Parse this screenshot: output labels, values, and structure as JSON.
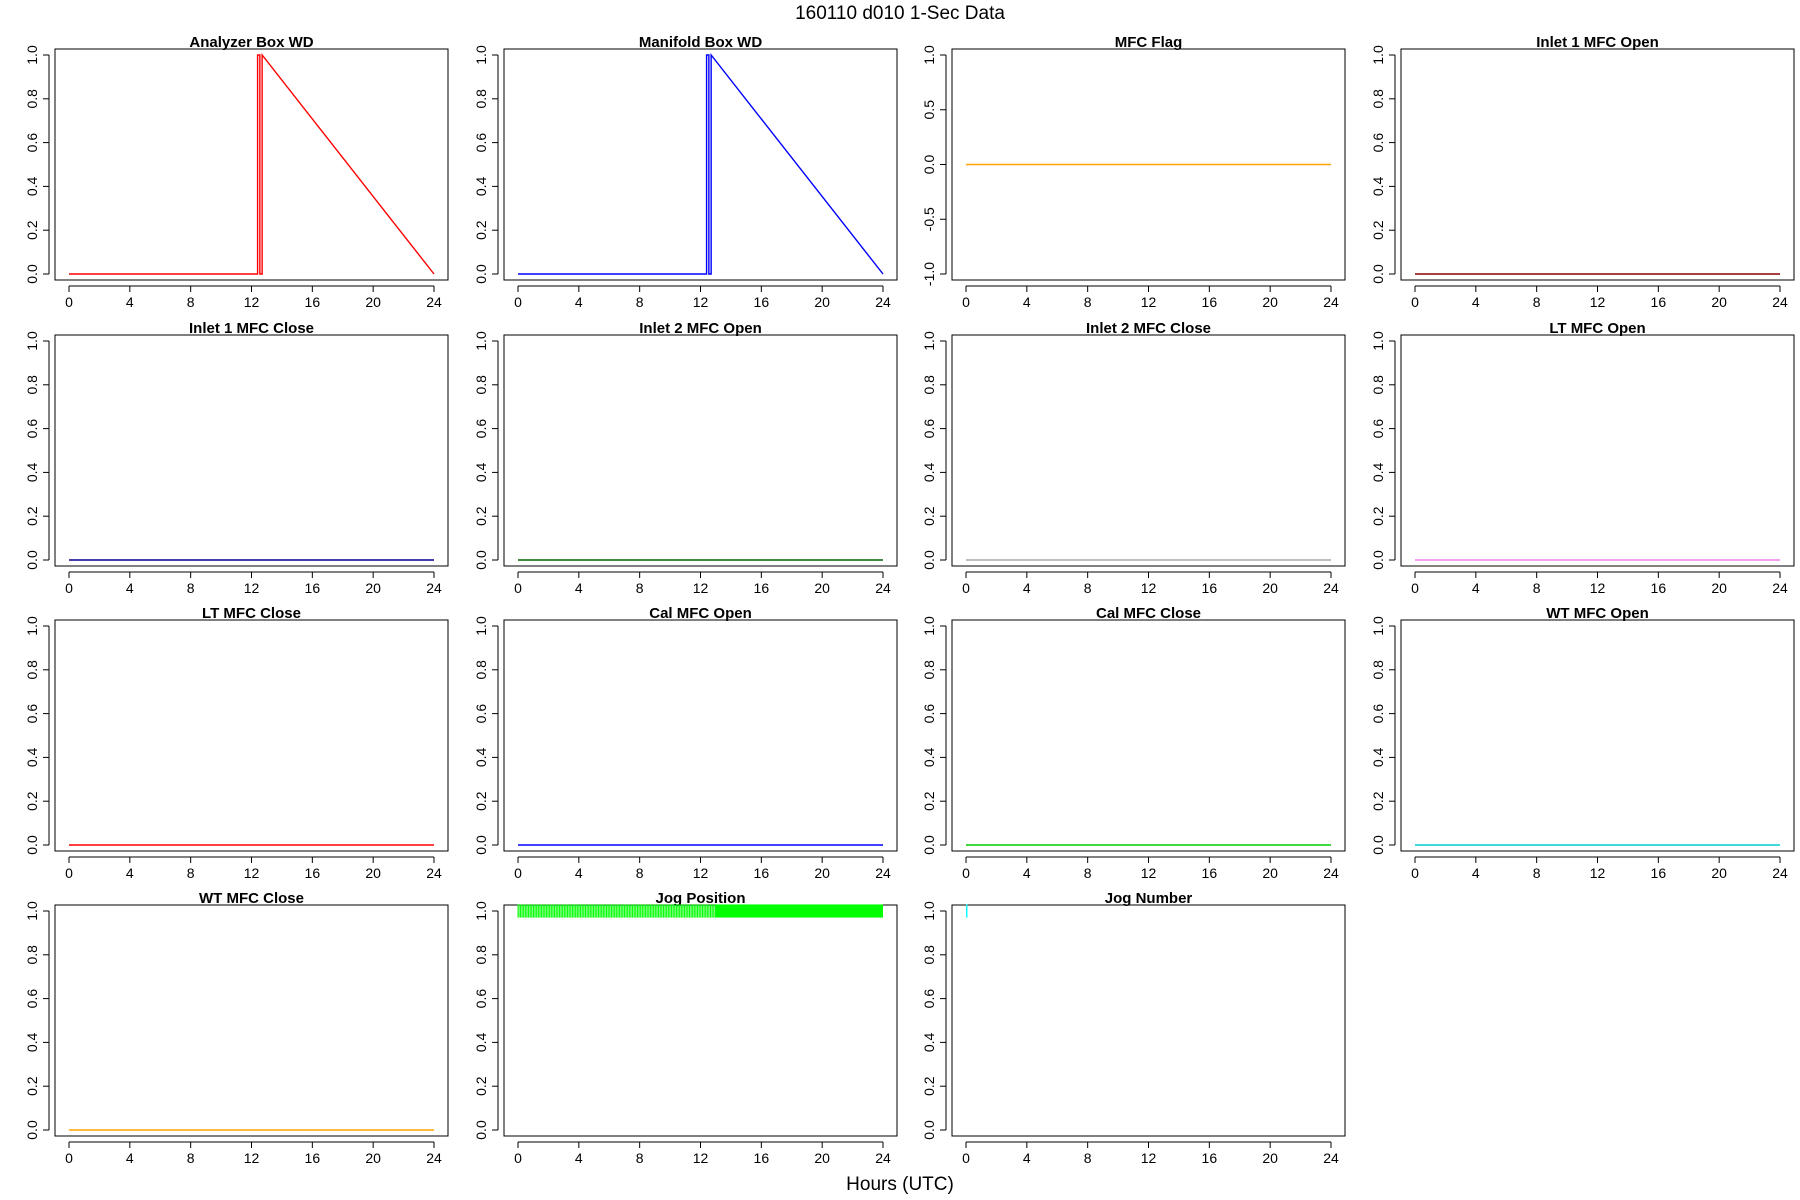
{
  "figure": {
    "title": "160110   d010   1-Sec Data",
    "xlabel": "Hours (UTC)"
  },
  "chart_data": [
    {
      "type": "line",
      "title": "Analyzer Box WD",
      "color": "#ff0000",
      "xlim": [
        0,
        24
      ],
      "ylim": [
        0,
        1
      ],
      "xticks": [
        0,
        4,
        8,
        12,
        16,
        20,
        24
      ],
      "yticks": [
        0,
        0.2,
        0.4,
        0.6,
        0.8,
        1
      ],
      "ytick_labels": [
        "0.0",
        "0.2",
        "0.4",
        "0.6",
        "0.8",
        "1.0"
      ],
      "series": [
        {
          "x": [
            0,
            12.4,
            12.4,
            12.55,
            12.55,
            12.7,
            12.7,
            24
          ],
          "y": [
            0,
            0,
            1,
            1,
            0,
            0,
            1,
            0
          ]
        }
      ]
    },
    {
      "type": "line",
      "title": "Manifold Box WD",
      "color": "#0000ff",
      "xlim": [
        0,
        24
      ],
      "ylim": [
        0,
        1
      ],
      "xticks": [
        0,
        4,
        8,
        12,
        16,
        20,
        24
      ],
      "yticks": [
        0,
        0.2,
        0.4,
        0.6,
        0.8,
        1
      ],
      "ytick_labels": [
        "0.0",
        "0.2",
        "0.4",
        "0.6",
        "0.8",
        "1.0"
      ],
      "series": [
        {
          "x": [
            0,
            12.4,
            12.4,
            12.55,
            12.55,
            12.7,
            12.7,
            24
          ],
          "y": [
            0,
            0,
            1,
            1,
            0,
            0,
            1,
            0
          ]
        }
      ]
    },
    {
      "type": "line",
      "title": "MFC Flag",
      "color": "#ffa500",
      "xlim": [
        0,
        24
      ],
      "ylim": [
        -1,
        1
      ],
      "xticks": [
        0,
        4,
        8,
        12,
        16,
        20,
        24
      ],
      "yticks": [
        -1,
        -0.5,
        0,
        0.5,
        1
      ],
      "ytick_labels": [
        "-1.0",
        "-0.5",
        "0.0",
        "0.5",
        "1.0"
      ],
      "series": [
        {
          "x": [
            0,
            24
          ],
          "y": [
            0,
            0
          ]
        }
      ]
    },
    {
      "type": "line",
      "title": "Inlet 1 MFC Open",
      "color": "#8b0000",
      "xlim": [
        0,
        24
      ],
      "ylim": [
        0,
        1
      ],
      "xticks": [
        0,
        4,
        8,
        12,
        16,
        20,
        24
      ],
      "yticks": [
        0,
        0.2,
        0.4,
        0.6,
        0.8,
        1
      ],
      "ytick_labels": [
        "0.0",
        "0.2",
        "0.4",
        "0.6",
        "0.8",
        "1.0"
      ],
      "series": [
        {
          "x": [
            0,
            24
          ],
          "y": [
            0,
            0
          ]
        }
      ]
    },
    {
      "type": "line",
      "title": "Inlet 1 MFC Close",
      "color": "#00008b",
      "xlim": [
        0,
        24
      ],
      "ylim": [
        0,
        1
      ],
      "xticks": [
        0,
        4,
        8,
        12,
        16,
        20,
        24
      ],
      "yticks": [
        0,
        0.2,
        0.4,
        0.6,
        0.8,
        1
      ],
      "ytick_labels": [
        "0.0",
        "0.2",
        "0.4",
        "0.6",
        "0.8",
        "1.0"
      ],
      "series": [
        {
          "x": [
            0,
            24
          ],
          "y": [
            0,
            0
          ]
        }
      ]
    },
    {
      "type": "line",
      "title": "Inlet 2 MFC Open",
      "color": "#006400",
      "xlim": [
        0,
        24
      ],
      "ylim": [
        0,
        1
      ],
      "xticks": [
        0,
        4,
        8,
        12,
        16,
        20,
        24
      ],
      "yticks": [
        0,
        0.2,
        0.4,
        0.6,
        0.8,
        1
      ],
      "ytick_labels": [
        "0.0",
        "0.2",
        "0.4",
        "0.6",
        "0.8",
        "1.0"
      ],
      "series": [
        {
          "x": [
            0,
            24
          ],
          "y": [
            0,
            0
          ]
        }
      ]
    },
    {
      "type": "line",
      "title": "Inlet 2 MFC Close",
      "color": "#a9a9a9",
      "xlim": [
        0,
        24
      ],
      "ylim": [
        0,
        1
      ],
      "xticks": [
        0,
        4,
        8,
        12,
        16,
        20,
        24
      ],
      "yticks": [
        0,
        0.2,
        0.4,
        0.6,
        0.8,
        1
      ],
      "ytick_labels": [
        "0.0",
        "0.2",
        "0.4",
        "0.6",
        "0.8",
        "1.0"
      ],
      "series": [
        {
          "x": [
            0,
            24
          ],
          "y": [
            0,
            0
          ]
        }
      ]
    },
    {
      "type": "line",
      "title": "LT MFC Open",
      "color": "#ee82ee",
      "xlim": [
        0,
        24
      ],
      "ylim": [
        0,
        1
      ],
      "xticks": [
        0,
        4,
        8,
        12,
        16,
        20,
        24
      ],
      "yticks": [
        0,
        0.2,
        0.4,
        0.6,
        0.8,
        1
      ],
      "ytick_labels": [
        "0.0",
        "0.2",
        "0.4",
        "0.6",
        "0.8",
        "1.0"
      ],
      "series": [
        {
          "x": [
            0,
            24
          ],
          "y": [
            0,
            0
          ]
        }
      ]
    },
    {
      "type": "line",
      "title": "LT MFC Close",
      "color": "#ff0000",
      "xlim": [
        0,
        24
      ],
      "ylim": [
        0,
        1
      ],
      "xticks": [
        0,
        4,
        8,
        12,
        16,
        20,
        24
      ],
      "yticks": [
        0,
        0.2,
        0.4,
        0.6,
        0.8,
        1
      ],
      "ytick_labels": [
        "0.0",
        "0.2",
        "0.4",
        "0.6",
        "0.8",
        "1.0"
      ],
      "series": [
        {
          "x": [
            0,
            24
          ],
          "y": [
            0,
            0
          ]
        }
      ]
    },
    {
      "type": "line",
      "title": "Cal MFC Open",
      "color": "#0000ff",
      "xlim": [
        0,
        24
      ],
      "ylim": [
        0,
        1
      ],
      "xticks": [
        0,
        4,
        8,
        12,
        16,
        20,
        24
      ],
      "yticks": [
        0,
        0.2,
        0.4,
        0.6,
        0.8,
        1
      ],
      "ytick_labels": [
        "0.0",
        "0.2",
        "0.4",
        "0.6",
        "0.8",
        "1.0"
      ],
      "series": [
        {
          "x": [
            0,
            24
          ],
          "y": [
            0,
            0
          ]
        }
      ]
    },
    {
      "type": "line",
      "title": "Cal MFC Close",
      "color": "#00cd00",
      "xlim": [
        0,
        24
      ],
      "ylim": [
        0,
        1
      ],
      "xticks": [
        0,
        4,
        8,
        12,
        16,
        20,
        24
      ],
      "yticks": [
        0,
        0.2,
        0.4,
        0.6,
        0.8,
        1
      ],
      "ytick_labels": [
        "0.0",
        "0.2",
        "0.4",
        "0.6",
        "0.8",
        "1.0"
      ],
      "series": [
        {
          "x": [
            0,
            24
          ],
          "y": [
            0,
            0
          ]
        }
      ]
    },
    {
      "type": "line",
      "title": "WT MFC Open",
      "color": "#00ced1",
      "xlim": [
        0,
        24
      ],
      "ylim": [
        0,
        1
      ],
      "xticks": [
        0,
        4,
        8,
        12,
        16,
        20,
        24
      ],
      "yticks": [
        0,
        0.2,
        0.4,
        0.6,
        0.8,
        1
      ],
      "ytick_labels": [
        "0.0",
        "0.2",
        "0.4",
        "0.6",
        "0.8",
        "1.0"
      ],
      "series": [
        {
          "x": [
            0,
            24
          ],
          "y": [
            0,
            0
          ]
        }
      ]
    },
    {
      "type": "line",
      "title": "WT MFC Close",
      "color": "#ffa500",
      "xlim": [
        0,
        24
      ],
      "ylim": [
        0,
        1
      ],
      "xticks": [
        0,
        4,
        8,
        12,
        16,
        20,
        24
      ],
      "yticks": [
        0,
        0.2,
        0.4,
        0.6,
        0.8,
        1
      ],
      "ytick_labels": [
        "0.0",
        "0.2",
        "0.4",
        "0.6",
        "0.8",
        "1.0"
      ],
      "series": [
        {
          "x": [
            0,
            24
          ],
          "y": [
            0,
            0
          ]
        }
      ]
    },
    {
      "type": "scatter",
      "title": "Jog Position",
      "color": "#00ff00",
      "xlim": [
        0,
        24
      ],
      "ylim": [
        0,
        1
      ],
      "xticks": [
        0,
        4,
        8,
        12,
        16,
        20,
        24
      ],
      "yticks": [
        0,
        0.2,
        0.4,
        0.6,
        0.8,
        1
      ],
      "ytick_labels": [
        "0.0",
        "0.2",
        "0.4",
        "0.6",
        "0.8",
        "1.0"
      ],
      "bands": [
        {
          "x_start": 0,
          "x_end": 13,
          "y_min": 0.97,
          "y_max": 1.03,
          "style": "striped"
        },
        {
          "x_start": 13,
          "x_end": 24,
          "y_min": 0.97,
          "y_max": 1.03,
          "style": "solid"
        }
      ]
    },
    {
      "type": "line",
      "title": "Jog Number",
      "color": "#00ffff",
      "xlim": [
        0,
        24
      ],
      "ylim": [
        0,
        1
      ],
      "xticks": [
        0,
        4,
        8,
        12,
        16,
        20,
        24
      ],
      "yticks": [
        0,
        0.2,
        0.4,
        0.6,
        0.8,
        1
      ],
      "ytick_labels": [
        "0.0",
        "0.2",
        "0.4",
        "0.6",
        "0.8",
        "1.0"
      ],
      "series": [
        {
          "x": [
            0.05,
            0.05
          ],
          "y": [
            0.97,
            1.03
          ]
        }
      ]
    }
  ]
}
